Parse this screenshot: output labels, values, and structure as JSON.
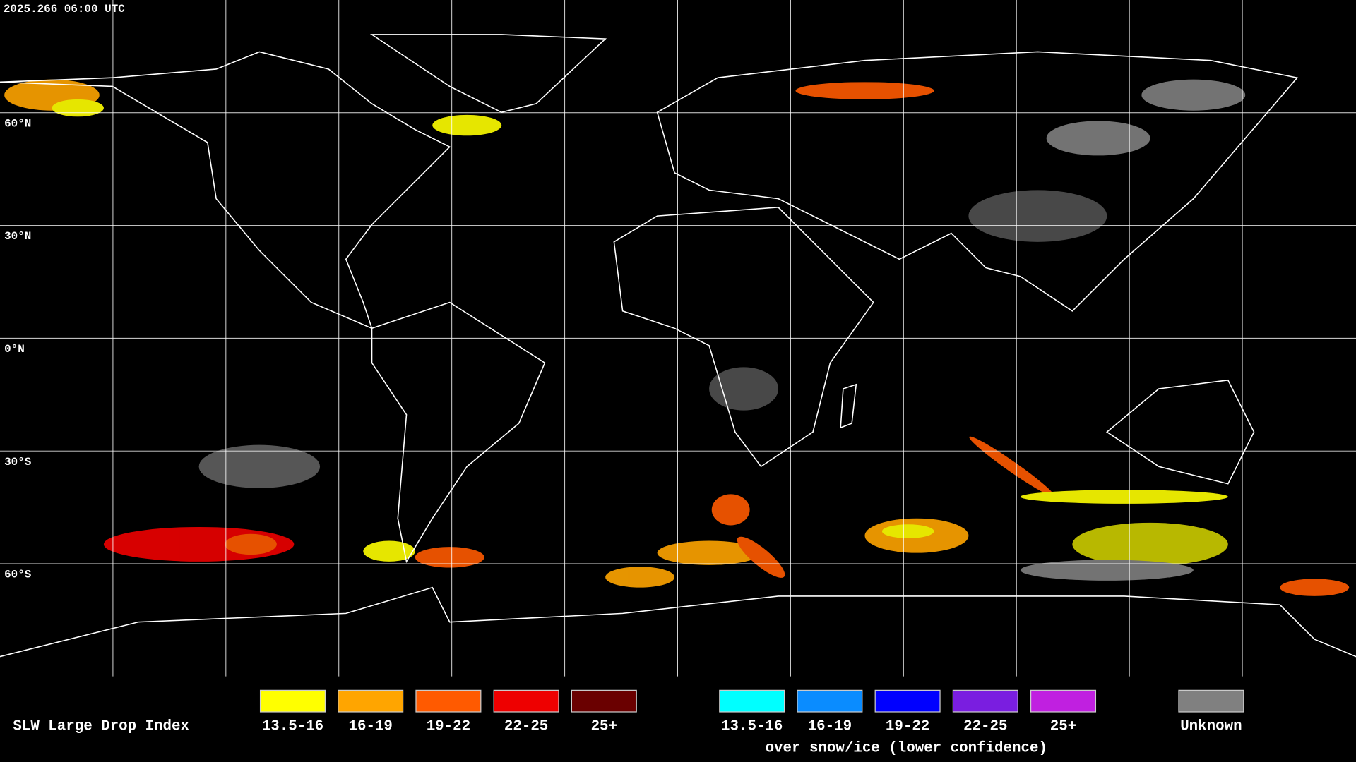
{
  "header": {
    "timestamp": "2025.266 06:00 UTC"
  },
  "grid": {
    "lat_labels": [
      "60°N",
      "30°N",
      "0°N",
      "30°S",
      "60°S"
    ]
  },
  "legend": {
    "title": "SLW Large Drop Index",
    "items": [
      {
        "label": "13.5-16",
        "color": "#ffff00"
      },
      {
        "label": "16-19",
        "color": "#ffa500"
      },
      {
        "label": "19-22",
        "color": "#ff5a00"
      },
      {
        "label": "22-25",
        "color": "#ee0000"
      },
      {
        "label": "25+",
        "color": "#6a0000"
      }
    ],
    "snow_items": [
      {
        "label": "13.5-16",
        "color": "#00ffff"
      },
      {
        "label": "16-19",
        "color": "#0a8cff"
      },
      {
        "label": "19-22",
        "color": "#0000ff"
      },
      {
        "label": "22-25",
        "color": "#7a1ee0"
      },
      {
        "label": "25+",
        "color": "#c020e0"
      }
    ],
    "snow_note": "over snow/ice (lower confidence)",
    "unknown": {
      "label": "Unknown",
      "color": "#808080"
    }
  }
}
